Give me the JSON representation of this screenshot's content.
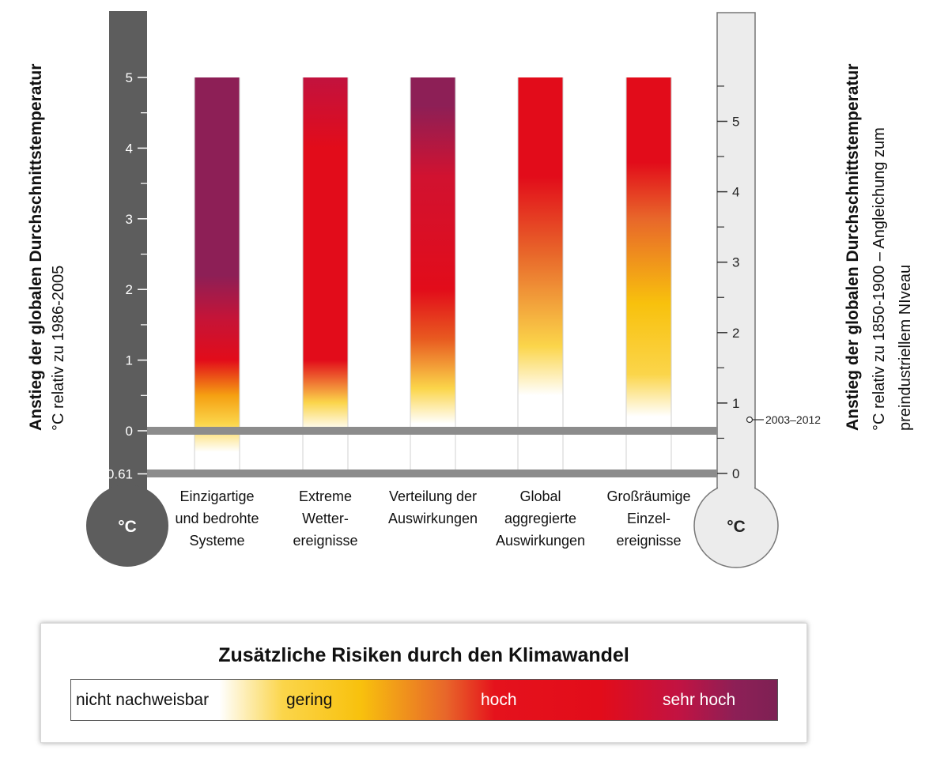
{
  "chart_data": {
    "type": "bar",
    "categories": [
      [
        "Einzigartige",
        "und bedrohte",
        "Systeme"
      ],
      [
        "Extreme",
        "Wetter-",
        "ereignisse"
      ],
      [
        "Verteilung der",
        "Auswirkungen"
      ],
      [
        "Global",
        "aggregierte",
        "Auswirkungen"
      ],
      [
        "Großräumige",
        "Einzel-",
        "ereignisse"
      ]
    ],
    "left_axis": {
      "title": "Anstieg der globalen Durchschnittstemperatur",
      "subtitle": "°C relativ zu 1986-2005",
      "ticks": [
        "5",
        "4",
        "3",
        "2",
        "1",
        "0",
        "-0.61"
      ],
      "range": [
        -0.61,
        5
      ]
    },
    "right_axis": {
      "title": "Anstieg der globalen Durchschnittstemperatur",
      "subtitle_lines": [
        "°C relativ zu 1850-1900 – Angleichung zum",
        "preindustriellem NIveau"
      ],
      "ticks": [
        "5",
        "4",
        "3",
        "2",
        "1",
        "0"
      ],
      "range": [
        0,
        5.61
      ],
      "marker": {
        "label": "2003–2012",
        "value": 0.78
      }
    },
    "bulb_label": "°C",
    "bar_top": 5,
    "risk_levels": [
      "nicht nachweisbar",
      "gering",
      "hoch",
      "sehr hoch"
    ],
    "risk_colors": {
      "nicht nachweisbar": "#ffffff",
      "gering": "#f8c10d",
      "hoch": "#e20c1a",
      "sehr hoch": "#8d1f56"
    },
    "series": [
      {
        "stops": [
          [
            -0.3,
            "#ffffff"
          ],
          [
            0.1,
            "#fbd54a"
          ],
          [
            0.5,
            "#f5a012"
          ],
          [
            1.0,
            "#e20c1a"
          ],
          [
            1.6,
            "#c41438"
          ],
          [
            2.2,
            "#8d1f56"
          ],
          [
            5.0,
            "#8d1f56"
          ]
        ]
      },
      {
        "stops": [
          [
            0.0,
            "#ffffff"
          ],
          [
            0.4,
            "#fbd54a"
          ],
          [
            1.0,
            "#e20c1a"
          ],
          [
            4.0,
            "#e20c1a"
          ],
          [
            5.0,
            "#c2123e"
          ]
        ]
      },
      {
        "stops": [
          [
            0.1,
            "#ffffff"
          ],
          [
            0.6,
            "#fbd54a"
          ],
          [
            1.3,
            "#e85a20"
          ],
          [
            2.0,
            "#e20c1a"
          ],
          [
            3.6,
            "#d11230"
          ],
          [
            4.6,
            "#8d1f56"
          ],
          [
            5.0,
            "#8d1f56"
          ]
        ]
      },
      {
        "stops": [
          [
            0.5,
            "#ffffff"
          ],
          [
            1.2,
            "#fbd54a"
          ],
          [
            2.5,
            "#e8672a"
          ],
          [
            3.6,
            "#e20c1a"
          ],
          [
            5.0,
            "#e20c1a"
          ]
        ]
      },
      {
        "stops": [
          [
            0.2,
            "#ffffff"
          ],
          [
            0.8,
            "#fbd54a"
          ],
          [
            1.8,
            "#f8c10d"
          ],
          [
            3.0,
            "#e8672a"
          ],
          [
            3.8,
            "#e20c1a"
          ],
          [
            5.0,
            "#e20c1a"
          ]
        ]
      }
    ]
  }
}
